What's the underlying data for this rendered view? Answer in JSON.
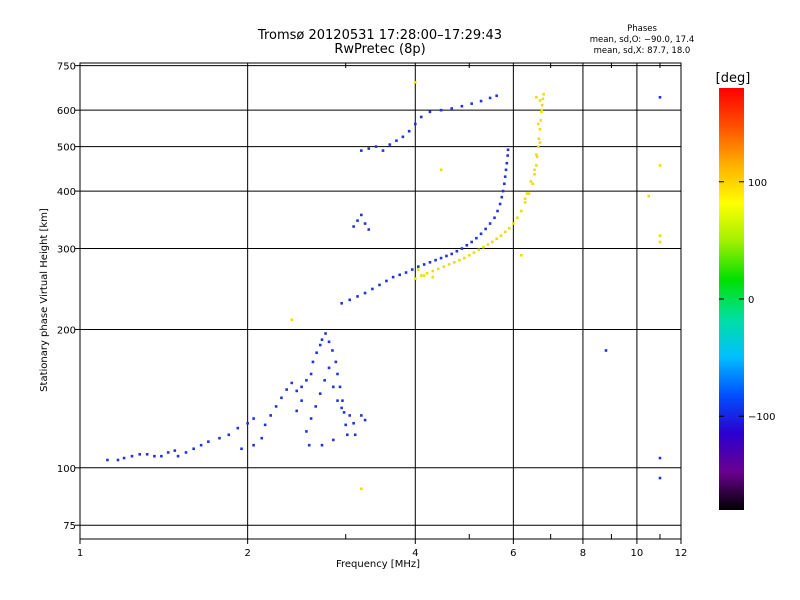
{
  "chart_data": {
    "type": "scatter",
    "title": "Tromsø 20120531 17:28:00–17:29:43",
    "subtitle": "RwPretec (8p)",
    "xlabel": "Frequency [MHz]",
    "ylabel": "Stationary phase Virtual Height [km]",
    "x_scale": "log",
    "y_scale": "log",
    "xlim": [
      1,
      12
    ],
    "ylim": [
      70,
      760
    ],
    "grid": true,
    "x_ticks": [
      1,
      2,
      4,
      6,
      8,
      10,
      12
    ],
    "x_minor_ticks": [
      3,
      5,
      7,
      9,
      11
    ],
    "x_tick_labels": [
      "1",
      "2",
      "4",
      "6",
      "8",
      "10",
      "12"
    ],
    "y_ticks": [
      75,
      100,
      200,
      300,
      400,
      500,
      600,
      750
    ],
    "y_tick_labels": [
      "75",
      "100",
      "200",
      "300",
      "400",
      "500",
      "600",
      "750"
    ],
    "phase_stats": {
      "heading": "Phases",
      "line1": "mean, sd,O: −90.0, 17.4",
      "line2": "mean, sd,X:  87.7, 18.0"
    },
    "colorbar": {
      "label": "[deg]",
      "range": [
        -180,
        180
      ],
      "ticks": [
        100,
        0,
        -100
      ],
      "tick_labels": [
        "100",
        "0",
        "−100"
      ],
      "colormap": [
        "#000000",
        "#6a0090",
        "#2a00d0",
        "#0050ff",
        "#00c0ff",
        "#00e0a0",
        "#00e000",
        "#a0f000",
        "#ffff00",
        "#ffb000",
        "#ff5000",
        "#ff0000"
      ]
    },
    "series": [
      {
        "trace": "O-mode",
        "phase_deg": -90,
        "color": "#2233dd",
        "points": [
          [
            1.12,
            104
          ],
          [
            1.17,
            104
          ],
          [
            1.2,
            105
          ],
          [
            1.24,
            106
          ],
          [
            1.28,
            107
          ],
          [
            1.32,
            107
          ],
          [
            1.36,
            106
          ],
          [
            1.4,
            106
          ],
          [
            1.44,
            108
          ],
          [
            1.48,
            109
          ],
          [
            1.5,
            106
          ],
          [
            1.55,
            108
          ],
          [
            1.6,
            110
          ],
          [
            1.65,
            112
          ],
          [
            1.7,
            114
          ],
          [
            1.78,
            116
          ],
          [
            1.85,
            118
          ],
          [
            1.92,
            122
          ],
          [
            2.0,
            125
          ],
          [
            2.05,
            128
          ],
          [
            1.95,
            110
          ],
          [
            2.05,
            112
          ],
          [
            2.12,
            116
          ],
          [
            2.15,
            124
          ],
          [
            2.2,
            130
          ],
          [
            2.25,
            136
          ],
          [
            2.3,
            142
          ],
          [
            2.35,
            148
          ],
          [
            2.4,
            153
          ],
          [
            2.45,
            147
          ],
          [
            2.5,
            150
          ],
          [
            2.55,
            155
          ],
          [
            2.6,
            160
          ],
          [
            2.62,
            170
          ],
          [
            2.66,
            178
          ],
          [
            2.7,
            185
          ],
          [
            2.72,
            190
          ],
          [
            2.76,
            196
          ],
          [
            2.8,
            188
          ],
          [
            2.84,
            180
          ],
          [
            2.88,
            170
          ],
          [
            2.9,
            160
          ],
          [
            2.93,
            150
          ],
          [
            2.96,
            140
          ],
          [
            2.98,
            132
          ],
          [
            3.0,
            124
          ],
          [
            3.02,
            118
          ],
          [
            2.55,
            120
          ],
          [
            2.6,
            128
          ],
          [
            2.65,
            136
          ],
          [
            2.7,
            145
          ],
          [
            2.75,
            155
          ],
          [
            2.8,
            165
          ],
          [
            2.85,
            150
          ],
          [
            2.9,
            140
          ],
          [
            2.95,
            135
          ],
          [
            3.05,
            130
          ],
          [
            3.1,
            125
          ],
          [
            3.12,
            118
          ],
          [
            2.45,
            133
          ],
          [
            2.5,
            140
          ],
          [
            2.58,
            112
          ],
          [
            2.72,
            112
          ],
          [
            2.85,
            115
          ],
          [
            3.2,
            130
          ],
          [
            3.25,
            127
          ],
          [
            2.95,
            228
          ],
          [
            3.05,
            232
          ],
          [
            3.15,
            236
          ],
          [
            3.25,
            240
          ],
          [
            3.35,
            245
          ],
          [
            3.45,
            250
          ],
          [
            3.55,
            255
          ],
          [
            3.65,
            260
          ],
          [
            3.75,
            263
          ],
          [
            3.85,
            266
          ],
          [
            3.95,
            270
          ],
          [
            4.05,
            274
          ],
          [
            4.15,
            277
          ],
          [
            4.25,
            280
          ],
          [
            4.35,
            283
          ],
          [
            4.45,
            286
          ],
          [
            4.55,
            289
          ],
          [
            4.65,
            292
          ],
          [
            4.75,
            296
          ],
          [
            4.85,
            300
          ],
          [
            4.95,
            305
          ],
          [
            5.05,
            310
          ],
          [
            5.15,
            316
          ],
          [
            5.25,
            323
          ],
          [
            5.35,
            331
          ],
          [
            5.45,
            340
          ],
          [
            5.55,
            350
          ],
          [
            5.62,
            362
          ],
          [
            5.68,
            375
          ],
          [
            5.72,
            388
          ],
          [
            5.75,
            400
          ],
          [
            5.78,
            415
          ],
          [
            5.8,
            430
          ],
          [
            5.82,
            445
          ],
          [
            5.84,
            460
          ],
          [
            5.86,
            478
          ],
          [
            5.87,
            492
          ],
          [
            3.5,
            490
          ],
          [
            3.6,
            505
          ],
          [
            3.7,
            515
          ],
          [
            3.8,
            525
          ],
          [
            3.9,
            540
          ],
          [
            4.0,
            560
          ],
          [
            4.1,
            580
          ],
          [
            4.25,
            595
          ],
          [
            4.45,
            600
          ],
          [
            4.65,
            605
          ],
          [
            4.85,
            612
          ],
          [
            5.05,
            620
          ],
          [
            5.25,
            628
          ],
          [
            5.45,
            638
          ],
          [
            5.6,
            645
          ],
          [
            3.1,
            335
          ],
          [
            3.15,
            345
          ],
          [
            3.2,
            355
          ],
          [
            3.25,
            340
          ],
          [
            3.3,
            330
          ],
          [
            3.2,
            490
          ],
          [
            3.3,
            495
          ],
          [
            3.4,
            500
          ],
          [
            8.8,
            180
          ],
          [
            11.0,
            105
          ],
          [
            11.0,
            95
          ],
          [
            11.0,
            640
          ]
        ]
      },
      {
        "trace": "X-mode",
        "phase_deg": 88,
        "color": "#eedd00",
        "points": [
          [
            4.0,
            258
          ],
          [
            4.1,
            262
          ],
          [
            4.2,
            265
          ],
          [
            4.3,
            268
          ],
          [
            4.4,
            271
          ],
          [
            4.5,
            274
          ],
          [
            4.6,
            277
          ],
          [
            4.7,
            280
          ],
          [
            4.8,
            283
          ],
          [
            4.9,
            286
          ],
          [
            5.0,
            290
          ],
          [
            5.1,
            294
          ],
          [
            5.2,
            298
          ],
          [
            5.3,
            302
          ],
          [
            5.4,
            306
          ],
          [
            5.5,
            310
          ],
          [
            5.6,
            315
          ],
          [
            5.7,
            320
          ],
          [
            5.8,
            326
          ],
          [
            5.9,
            332
          ],
          [
            6.0,
            340
          ],
          [
            6.1,
            350
          ],
          [
            6.2,
            362
          ],
          [
            6.3,
            378
          ],
          [
            6.4,
            395
          ],
          [
            6.5,
            415
          ],
          [
            6.55,
            435
          ],
          [
            6.6,
            455
          ],
          [
            6.62,
            475
          ],
          [
            6.65,
            500
          ],
          [
            6.67,
            520
          ],
          [
            6.7,
            545
          ],
          [
            6.72,
            570
          ],
          [
            6.74,
            595
          ],
          [
            6.76,
            615
          ],
          [
            6.78,
            635
          ],
          [
            6.8,
            650
          ],
          [
            6.6,
            640
          ],
          [
            6.7,
            630
          ],
          [
            6.75,
            600
          ],
          [
            6.65,
            560
          ],
          [
            6.7,
            510
          ],
          [
            6.6,
            480
          ],
          [
            6.55,
            445
          ],
          [
            6.45,
            420
          ],
          [
            6.35,
            395
          ],
          [
            4.0,
            690
          ],
          [
            4.45,
            445
          ],
          [
            6.2,
            290
          ],
          [
            11.0,
            455
          ],
          [
            11.0,
            320
          ],
          [
            10.5,
            390
          ],
          [
            11.0,
            310
          ],
          [
            2.4,
            210
          ],
          [
            3.2,
            90
          ],
          [
            4.05,
            270
          ],
          [
            4.3,
            260
          ],
          [
            4.15,
            262
          ],
          [
            6.3,
            385
          ]
        ]
      }
    ]
  }
}
